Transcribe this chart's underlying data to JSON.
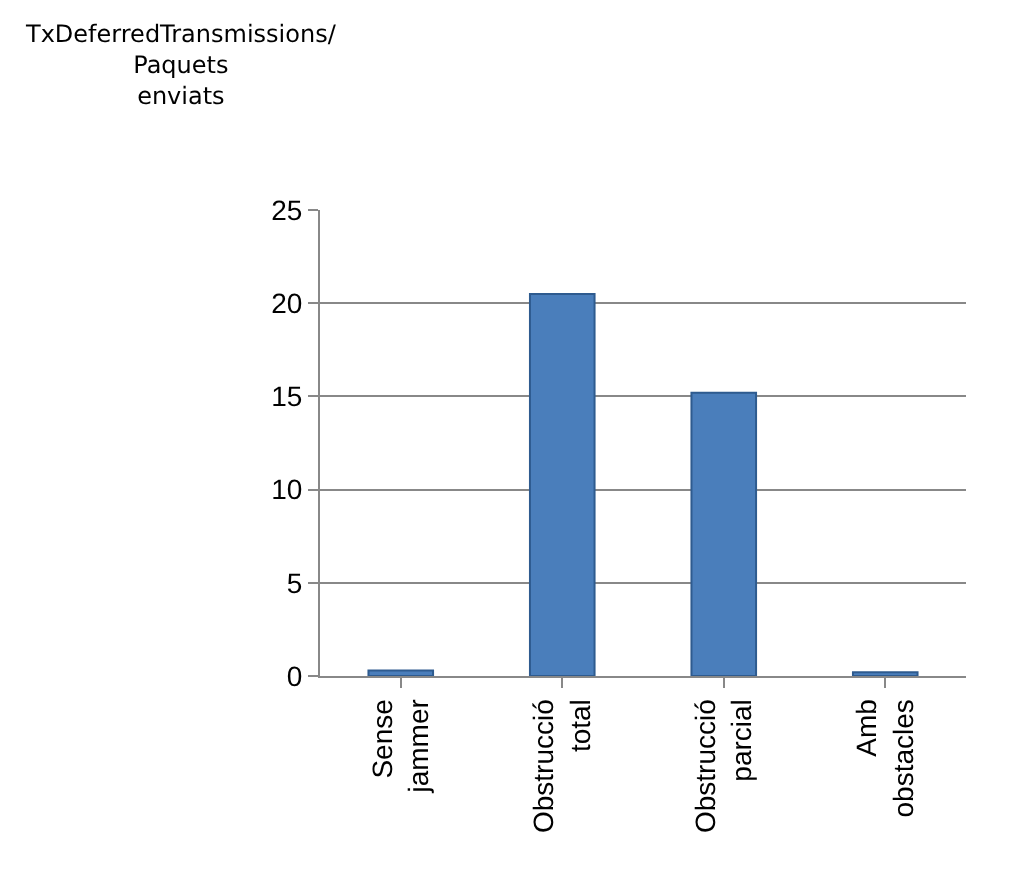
{
  "chart_data": {
    "type": "bar",
    "ylabel": "TxDeferredTransmissions/ Paquets enviats",
    "categories": [
      "Sense jammer",
      "Obstrucció total",
      "Obstrucció parcial",
      "Amb obstacles"
    ],
    "values": [
      0.3,
      20.5,
      15.2,
      0.2
    ],
    "color": "#4a7ebb",
    "ylim": [
      0,
      25
    ],
    "yticks": [
      0,
      5,
      10,
      15,
      20,
      25
    ],
    "grid": "y"
  }
}
